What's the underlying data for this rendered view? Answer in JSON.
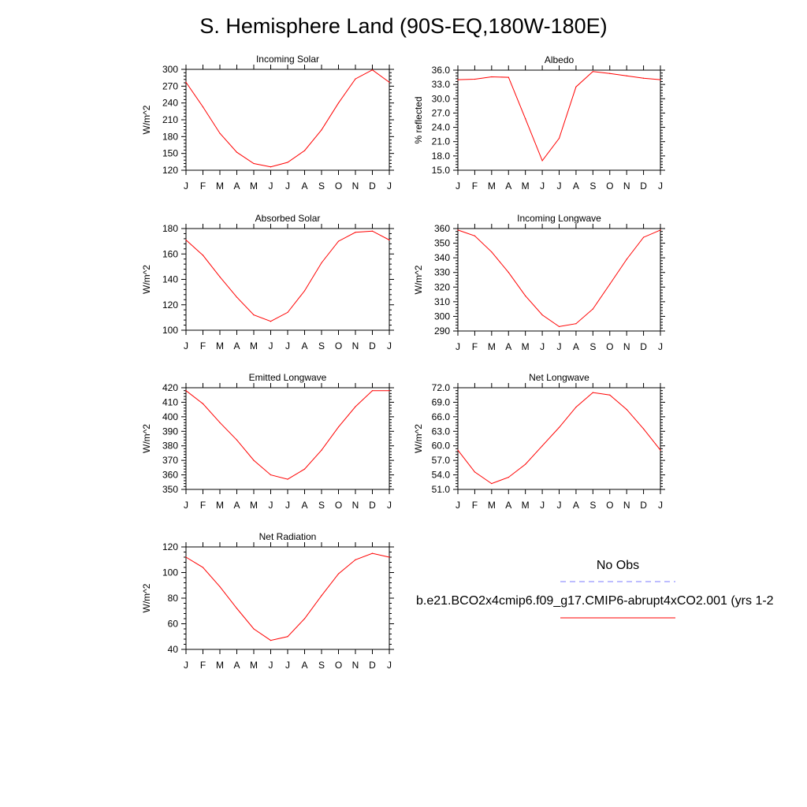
{
  "title": "S. Hemisphere Land (90S-EQ,180W-180E)",
  "months": [
    "J",
    "F",
    "M",
    "A",
    "M",
    "J",
    "J",
    "A",
    "S",
    "O",
    "N",
    "D",
    "J"
  ],
  "legend": {
    "obs_label": "No Obs",
    "obs_color": "#7b7bff",
    "model_label": "b.e21.BCO2x4cmip6.f09_g17.CMIP6-abrupt4xCO2.001 (yrs 1-2",
    "model_color": "#ff0000"
  },
  "chart_data": [
    {
      "type": "line",
      "title": "Incoming Solar",
      "ylabel": "W/m^2",
      "ylim": [
        120,
        300
      ],
      "yticks": [
        "120",
        "150",
        "180",
        "210",
        "240",
        "270",
        "300"
      ],
      "x": [
        "J",
        "F",
        "M",
        "A",
        "M",
        "J",
        "J",
        "A",
        "S",
        "O",
        "N",
        "D",
        "J"
      ],
      "series": [
        {
          "values": [
            277,
            233,
            186,
            152,
            132,
            126,
            134,
            155,
            192,
            240,
            283,
            299,
            277
          ]
        }
      ]
    },
    {
      "type": "line",
      "title": "Albedo",
      "ylabel": "% reflected",
      "ylim": [
        15.0,
        36.0
      ],
      "yticks": [
        "15.0",
        "18.0",
        "21.0",
        "24.0",
        "27.0",
        "30.0",
        "33.0",
        "36.0"
      ],
      "x": [
        "J",
        "F",
        "M",
        "A",
        "M",
        "J",
        "J",
        "A",
        "S",
        "O",
        "N",
        "D",
        "J"
      ],
      "series": [
        {
          "values": [
            34.0,
            34.1,
            34.6,
            34.5,
            25.8,
            17.0,
            21.7,
            32.5,
            35.7,
            35.3,
            34.8,
            34.3,
            34.0
          ]
        }
      ]
    },
    {
      "type": "line",
      "title": "Absorbed Solar",
      "ylabel": "W/m^2",
      "ylim": [
        100,
        180
      ],
      "yticks": [
        "100",
        "120",
        "140",
        "160",
        "180"
      ],
      "x": [
        "J",
        "F",
        "M",
        "A",
        "M",
        "J",
        "J",
        "A",
        "S",
        "O",
        "N",
        "D",
        "J"
      ],
      "series": [
        {
          "values": [
            171,
            159,
            142,
            126,
            112,
            107,
            114,
            131,
            153,
            170,
            177,
            178,
            171
          ]
        }
      ]
    },
    {
      "type": "line",
      "title": "Incoming Longwave",
      "ylabel": "W/m^2",
      "ylim": [
        290,
        360
      ],
      "yticks": [
        "290",
        "300",
        "310",
        "320",
        "330",
        "340",
        "350",
        "360"
      ],
      "x": [
        "J",
        "F",
        "M",
        "A",
        "M",
        "J",
        "J",
        "A",
        "S",
        "O",
        "N",
        "D",
        "J"
      ],
      "series": [
        {
          "values": [
            359,
            355,
            344,
            330,
            314,
            301,
            293,
            295,
            305,
            322,
            339,
            354,
            359
          ]
        }
      ]
    },
    {
      "type": "line",
      "title": "Emitted Longwave",
      "ylabel": "W/m^2",
      "ylim": [
        350,
        420
      ],
      "yticks": [
        "350",
        "360",
        "370",
        "380",
        "390",
        "400",
        "410",
        "420"
      ],
      "x": [
        "J",
        "F",
        "M",
        "A",
        "M",
        "J",
        "J",
        "A",
        "S",
        "O",
        "N",
        "D",
        "J"
      ],
      "series": [
        {
          "values": [
            418,
            409,
            396,
            384,
            370,
            360,
            357,
            364,
            377,
            393,
            407,
            418,
            418
          ]
        }
      ]
    },
    {
      "type": "line",
      "title": "Net Longwave",
      "ylabel": "W/m^2",
      "ylim": [
        51.0,
        72.0
      ],
      "yticks": [
        "51.0",
        "54.0",
        "57.0",
        "60.0",
        "63.0",
        "66.0",
        "69.0",
        "72.0"
      ],
      "x": [
        "J",
        "F",
        "M",
        "A",
        "M",
        "J",
        "J",
        "A",
        "S",
        "O",
        "N",
        "D",
        "J"
      ],
      "series": [
        {
          "values": [
            59.1,
            54.6,
            52.2,
            53.5,
            56.2,
            60.0,
            63.8,
            68.0,
            71.0,
            70.5,
            67.5,
            63.5,
            59.1
          ]
        }
      ]
    },
    {
      "type": "line",
      "title": "Net Radiation",
      "ylabel": "W/m^2",
      "ylim": [
        40,
        120
      ],
      "yticks": [
        "40",
        "60",
        "80",
        "100",
        "120"
      ],
      "x": [
        "J",
        "F",
        "M",
        "A",
        "M",
        "J",
        "J",
        "A",
        "S",
        "O",
        "N",
        "D",
        "J"
      ],
      "series": [
        {
          "values": [
            112,
            104,
            89,
            72,
            56,
            47,
            50,
            64,
            82,
            99,
            110,
            115,
            112
          ]
        }
      ]
    }
  ]
}
